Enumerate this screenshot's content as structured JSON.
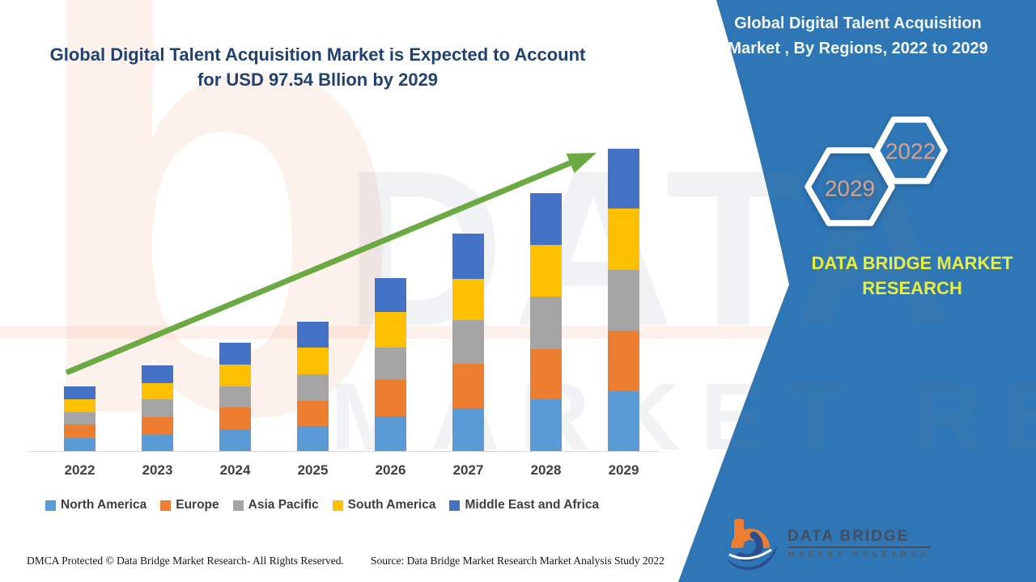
{
  "header": {
    "title_line1": "Global Digital Talent Acquisition Market is Expected to Account",
    "title_line2": "for USD 97.54 Bllion by 2029"
  },
  "side_panel": {
    "title_line1": "Global Digital Talent Acquisition",
    "title_line2": "Market , By Regions, 2022 to 2029",
    "hex_front_year": "2022",
    "hex_back_year": "2029",
    "brand_line1": "DATA BRIDGE MARKET",
    "brand_line2": "RESEARCH"
  },
  "logo": {
    "name": "DATA BRIDGE",
    "tagline": "MARKET RESEARCH"
  },
  "footer": {
    "dmca": "DMCA Protected © Data Bridge Market Research- All Rights Reserved.",
    "source": "Source: Data Bridge Market Research Market Analysis Study 2022"
  },
  "watermarks": {
    "big_letter": "b",
    "text_top": "DATA BRIDGE",
    "text_bottom": "MARKET RESEARCH"
  },
  "colors": {
    "panel_blue": "#2e76b5",
    "arrow_green": "#6ba943",
    "title_navy": "#1f4272",
    "brand_yellow": "#e9ef3c",
    "hex_year_text": "#d9a287",
    "axis_gray": "#d9d9d9",
    "label_gray": "#3f3f3f"
  },
  "chart_data": {
    "type": "bar",
    "stacked": true,
    "title": "Global Digital Talent Acquisition Market is Expected to Account for USD 97.54 Bllion by 2029",
    "unit": "USD Billion",
    "categories": [
      "2022",
      "2023",
      "2024",
      "2025",
      "2026",
      "2027",
      "2028",
      "2029"
    ],
    "series": [
      {
        "name": "North America",
        "color": "#5B9BD5",
        "values": [
          4.2,
          5.2,
          7.0,
          8.0,
          11.2,
          13.9,
          16.6,
          19.4
        ]
      },
      {
        "name": "Europe",
        "color": "#ED7D31",
        "values": [
          4.4,
          5.9,
          7.1,
          8.3,
          11.8,
          14.4,
          16.3,
          19.6
        ]
      },
      {
        "name": "Asia Pacific",
        "color": "#A5A5A5",
        "values": [
          3.9,
          5.7,
          6.8,
          8.5,
          10.4,
          14.0,
          17.0,
          19.6
        ]
      },
      {
        "name": "South America",
        "color": "#FFC000",
        "values": [
          4.2,
          5.2,
          7.0,
          8.5,
          11.5,
          13.4,
          16.8,
          19.8
        ]
      },
      {
        "name": "Middle East and Africa",
        "color": "#4472C4",
        "values": [
          4.2,
          5.7,
          7.1,
          8.4,
          11.1,
          14.5,
          16.7,
          19.2
        ]
      }
    ],
    "totals_estimated_usd_billion": [
      20.9,
      27.7,
      35.0,
      41.7,
      56.0,
      70.2,
      83.4,
      97.6
    ],
    "ylim": [
      0,
      100
    ],
    "grid": false,
    "legend_position": "bottom",
    "annotations": [
      "upward growth trend arrow from 2022 to 2029"
    ]
  }
}
